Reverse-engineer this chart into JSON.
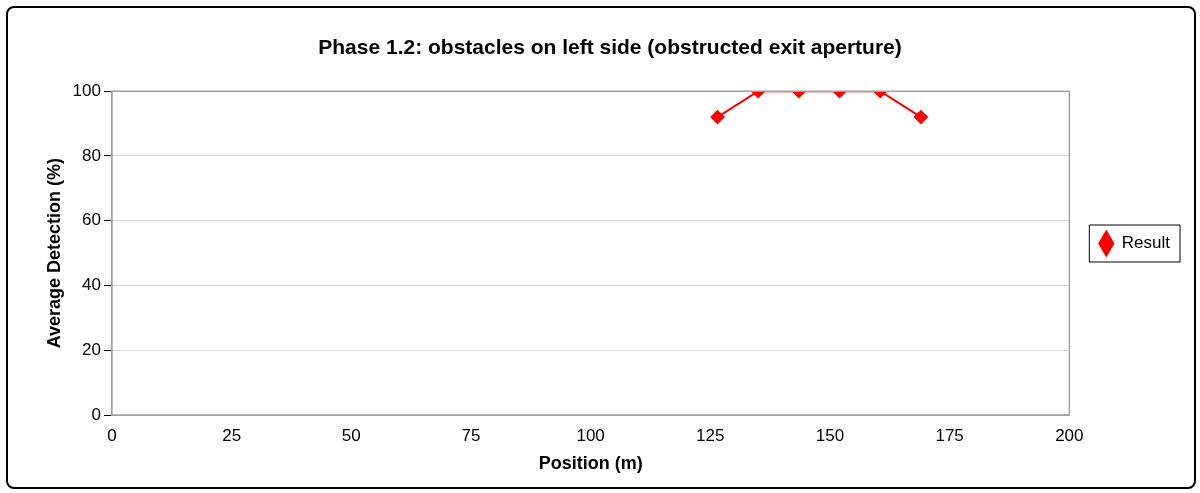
{
  "chart_data": {
    "type": "line",
    "title": "Phase 1.2: obstacles on left side (obstructed exit aperture)",
    "xlabel": "Position (m)",
    "ylabel": "Average Detection (%)",
    "series": [
      {
        "name": "Result",
        "color": "#ff0000",
        "x": [
          126.5,
          135,
          143.5,
          152,
          160.5,
          169
        ],
        "values": [
          92,
          100,
          100,
          100,
          100,
          92
        ]
      }
    ],
    "xlim": [
      0,
      200
    ],
    "xticks": [
      0,
      25,
      50,
      75,
      100,
      125,
      150,
      175,
      200
    ],
    "ylim": [
      0,
      100
    ],
    "yticks": [
      0,
      20,
      40,
      60,
      80,
      100
    ],
    "grid": "y",
    "legend": "right",
    "marker": "diamond",
    "line_style": "solid"
  }
}
